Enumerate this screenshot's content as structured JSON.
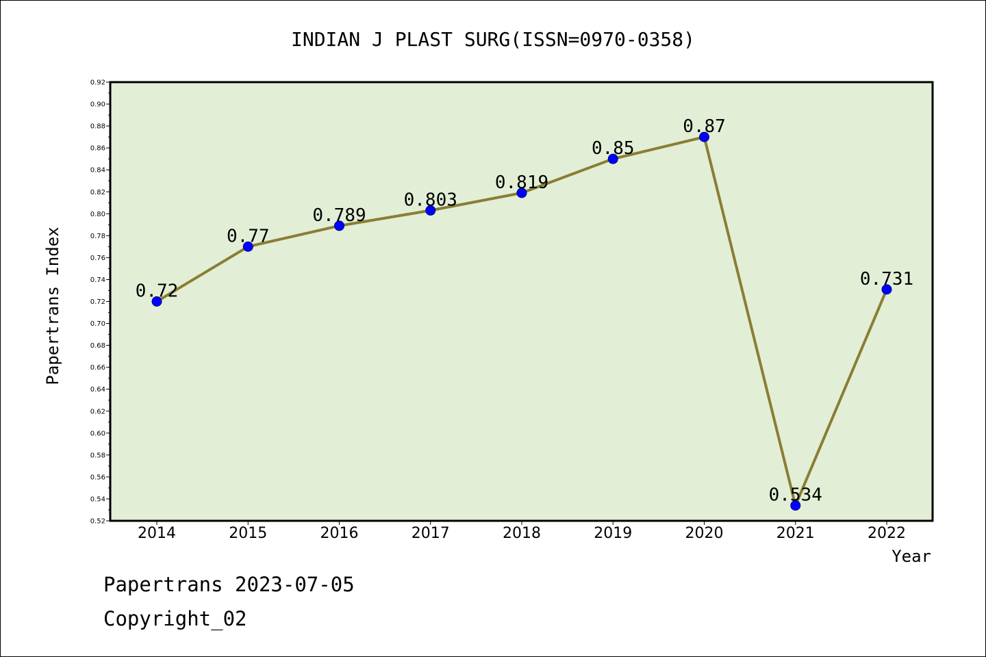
{
  "chart_data": {
    "type": "line",
    "title": "INDIAN J PLAST SURG(ISSN=0970-0358)",
    "xlabel": "Year",
    "ylabel": "Papertrans Index",
    "categories": [
      "2014",
      "2015",
      "2016",
      "2017",
      "2018",
      "2019",
      "2020",
      "2021",
      "2022"
    ],
    "series": [
      {
        "name": "Papertrans Index",
        "values": [
          0.72,
          0.77,
          0.789,
          0.803,
          0.819,
          0.85,
          0.87,
          0.534,
          0.731
        ],
        "labels": [
          "0.72",
          "0.77",
          "0.789",
          "0.803",
          "0.819",
          "0.85",
          "0.87",
          "0.534",
          "0.731"
        ]
      }
    ],
    "ylim": [
      0.52,
      0.92
    ],
    "yticks": [
      "0.52",
      "0.54",
      "0.56",
      "0.58",
      "0.60",
      "0.62",
      "0.64",
      "0.66",
      "0.68",
      "0.70",
      "0.72",
      "0.74",
      "0.76",
      "0.78",
      "0.80",
      "0.82",
      "0.84",
      "0.86",
      "0.88",
      "0.90",
      "0.92"
    ],
    "grid": false,
    "colors": {
      "plot_background": "#e2efd6",
      "line": "#8b7d35",
      "marker": "#0000ff",
      "marker_edge": "#00008b"
    }
  },
  "footer": {
    "date_text": "Papertrans 2023-07-05",
    "copyright_text": "Copyright_02"
  }
}
